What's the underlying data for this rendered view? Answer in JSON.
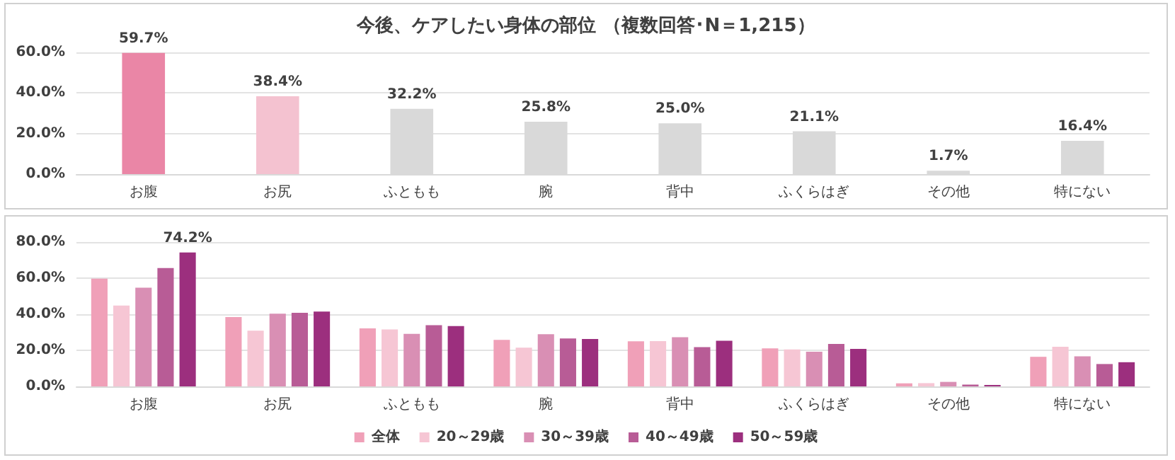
{
  "chart_data": [
    {
      "type": "bar",
      "title": "今後、ケアしたい身体の部位 （複数回答･N＝1,215）",
      "categories": [
        "お腹",
        "お尻",
        "ふともも",
        "腕",
        "背中",
        "ふくらはぎ",
        "その他",
        "特にない"
      ],
      "values": [
        59.7,
        38.4,
        32.2,
        25.8,
        25.0,
        21.1,
        1.7,
        16.4
      ],
      "colors": [
        "#ea86a6",
        "#f4c2d0",
        "#d9d9d9",
        "#d9d9d9",
        "#d9d9d9",
        "#d9d9d9",
        "#d9d9d9",
        "#d9d9d9"
      ],
      "value_labels": [
        "59.7%",
        "38.4%",
        "32.2%",
        "25.8%",
        "25.0%",
        "21.1%",
        "1.7%",
        "16.4%"
      ],
      "ylim": [
        0,
        60
      ],
      "yticks": [
        {
          "value": 0,
          "label": "0.0%"
        },
        {
          "value": 20,
          "label": "20.0%"
        },
        {
          "value": 40,
          "label": "40.0%"
        },
        {
          "value": 60,
          "label": "60.0%"
        }
      ],
      "grid": "y"
    },
    {
      "type": "bar",
      "categories": [
        "お腹",
        "お尻",
        "ふともも",
        "腕",
        "背中",
        "ふくらはぎ",
        "その他",
        "特にない"
      ],
      "series": [
        {
          "name": "全体",
          "color": "#f0a0b8",
          "values": [
            59.7,
            38.4,
            32.2,
            25.8,
            25.0,
            21.1,
            1.7,
            16.4
          ]
        },
        {
          "name": "20～29歳",
          "color": "#f6c6d4",
          "values": [
            44.8,
            30.9,
            31.6,
            21.5,
            25.1,
            20.5,
            1.8,
            22.0
          ]
        },
        {
          "name": "30～39歳",
          "color": "#d98fb4",
          "values": [
            54.7,
            40.3,
            29.1,
            28.9,
            27.3,
            19.2,
            2.5,
            16.7
          ]
        },
        {
          "name": "40～49歳",
          "color": "#b85c96",
          "values": [
            65.6,
            40.8,
            33.9,
            26.6,
            21.8,
            23.5,
            1.0,
            12.4
          ]
        },
        {
          "name": "50～59歳",
          "color": "#9c2f7e",
          "values": [
            74.2,
            41.5,
            33.4,
            26.3,
            25.3,
            20.8,
            0.8,
            13.4
          ],
          "value_labels": [
            "74.2%",
            null,
            null,
            null,
            null,
            null,
            null,
            null
          ]
        }
      ],
      "ylim": [
        0,
        80
      ],
      "yticks": [
        {
          "value": 0,
          "label": "0.0%"
        },
        {
          "value": 20,
          "label": "20.0%"
        },
        {
          "value": 40,
          "label": "40.0%"
        },
        {
          "value": 60,
          "label": "60.0%"
        },
        {
          "value": 80,
          "label": "80.0%"
        }
      ],
      "grid": "y",
      "legend": "bottom"
    }
  ]
}
